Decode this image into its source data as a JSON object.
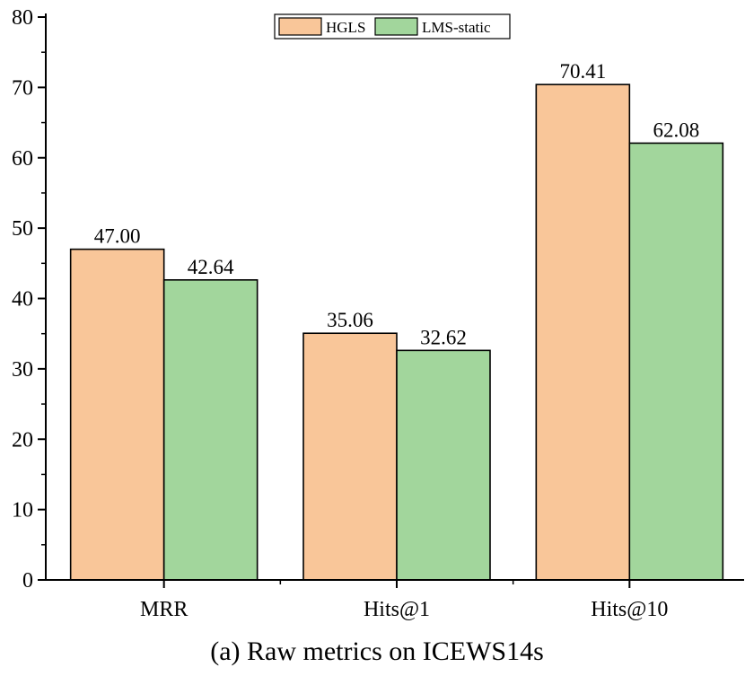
{
  "chart_data": {
    "type": "bar",
    "caption": "(a) Raw metrics on ICEWS14s",
    "categories": [
      "MRR",
      "Hits@1",
      "Hits@10"
    ],
    "series": [
      {
        "name": "HGLS",
        "values": [
          47.0,
          35.06,
          70.41
        ],
        "labels": [
          "47.00",
          "35.06",
          "70.41"
        ],
        "color": "#F9C699"
      },
      {
        "name": "LMS-static",
        "values": [
          42.64,
          32.62,
          62.08
        ],
        "labels": [
          "42.64",
          "32.62",
          "62.08"
        ],
        "color": "#A2D69C"
      }
    ],
    "ylim": [
      0,
      80
    ],
    "yticks": [
      0,
      10,
      20,
      30,
      40,
      50,
      60,
      70,
      80
    ],
    "ytick_labels": [
      "0",
      "10",
      "20",
      "30",
      "40",
      "50",
      "60",
      "70",
      "80"
    ],
    "legend_position": "top-right",
    "grid": false
  }
}
